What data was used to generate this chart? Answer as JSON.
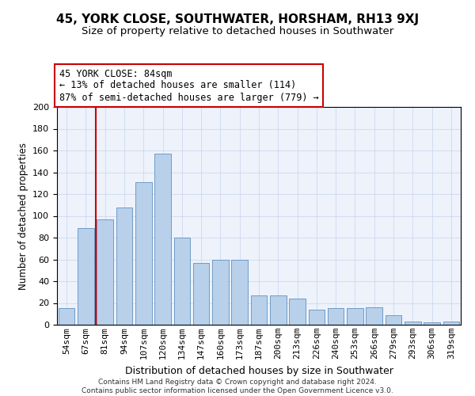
{
  "title1": "45, YORK CLOSE, SOUTHWATER, HORSHAM, RH13 9XJ",
  "title2": "Size of property relative to detached houses in Southwater",
  "xlabel": "Distribution of detached houses by size in Southwater",
  "ylabel": "Number of detached properties",
  "footnote1": "Contains HM Land Registry data © Crown copyright and database right 2024.",
  "footnote2": "Contains public sector information licensed under the Open Government Licence v3.0.",
  "annotation_line1": "45 YORK CLOSE: 84sqm",
  "annotation_line2": "← 13% of detached houses are smaller (114)",
  "annotation_line3": "87% of semi-detached houses are larger (779) →",
  "bar_color": "#b8d0ea",
  "bar_edge_color": "#6090c0",
  "background_color": "#edf2fb",
  "categories": [
    "54sqm",
    "67sqm",
    "81sqm",
    "94sqm",
    "107sqm",
    "120sqm",
    "134sqm",
    "147sqm",
    "160sqm",
    "173sqm",
    "187sqm",
    "200sqm",
    "213sqm",
    "226sqm",
    "240sqm",
    "253sqm",
    "266sqm",
    "279sqm",
    "293sqm",
    "306sqm",
    "319sqm"
  ],
  "values": [
    15,
    89,
    97,
    108,
    131,
    157,
    80,
    57,
    60,
    60,
    27,
    27,
    24,
    14,
    15,
    15,
    16,
    9,
    3,
    2,
    3
  ],
  "ylim": [
    0,
    200
  ],
  "yticks": [
    0,
    20,
    40,
    60,
    80,
    100,
    120,
    140,
    160,
    180,
    200
  ],
  "vline_x": 1.5,
  "vline_color": "#cc0000",
  "annotation_box_color": "#cc0000",
  "grid_color": "#c8d4ee",
  "title1_fontsize": 11,
  "title2_fontsize": 9.5,
  "ylabel_fontsize": 8.5,
  "xlabel_fontsize": 9,
  "tick_fontsize": 8,
  "annot_fontsize": 8.5,
  "footnote_fontsize": 6.5
}
